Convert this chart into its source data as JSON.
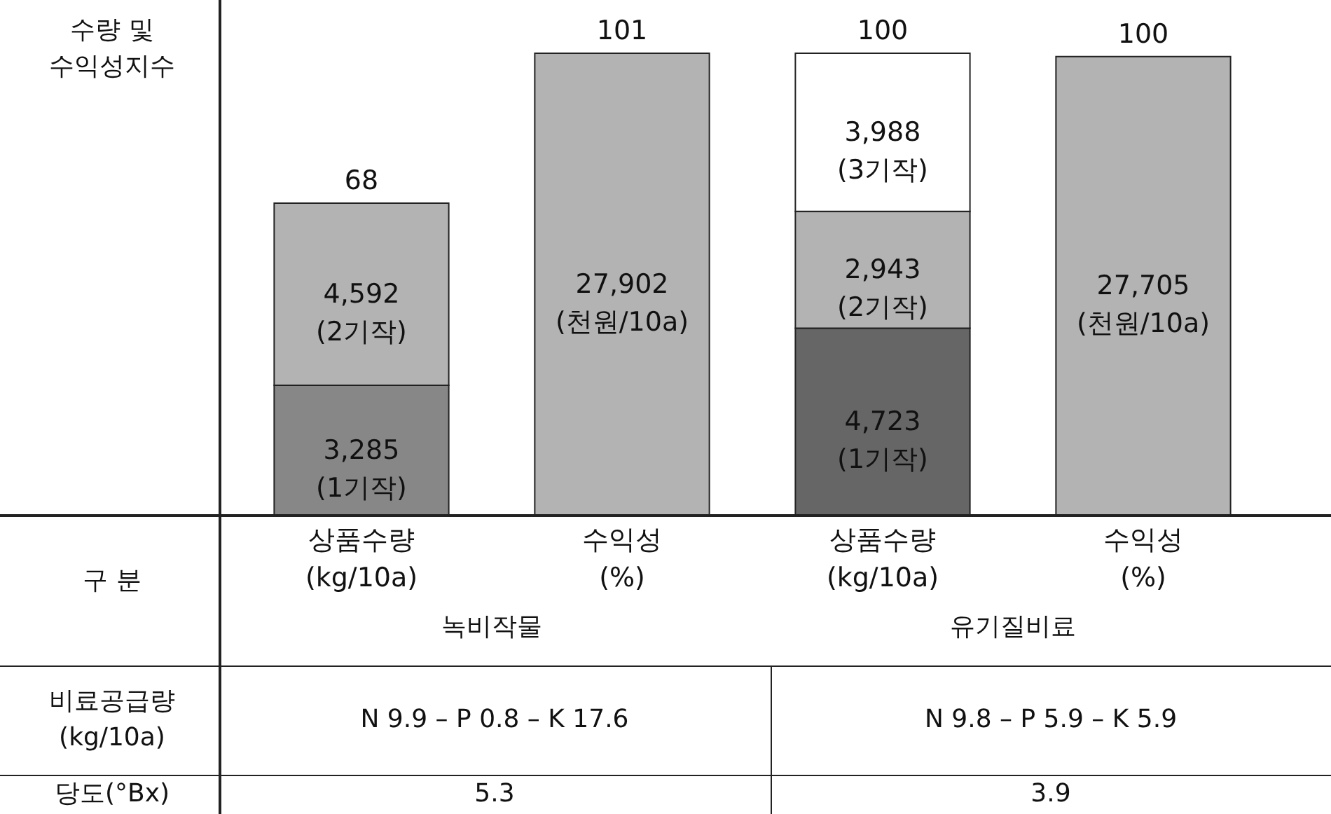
{
  "chart_data": {
    "type": "bar",
    "stacked": true,
    "tick_labels": "x",
    "ylabel": "수량 및\n수익성지수",
    "xlabel": "구 분",
    "ylim": [
      0,
      11654
    ],
    "y2lim": [
      0,
      27902
    ],
    "categories": [
      "상품수량\n(kg/10a)",
      "수익성\n(%)",
      "상품수량\n(kg/10a)",
      "수익성\n(%)"
    ],
    "series": [
      {
        "values": [
          3285,
          null,
          4723,
          null
        ],
        "value_labels": [
          "3,285\n(1기작)",
          null,
          "4,723\n(1기작)",
          null
        ],
        "colors": [
          "#878787",
          null,
          "#666666",
          null
        ]
      },
      {
        "color": "#b3b3b3",
        "values": [
          4592,
          null,
          2943,
          null
        ],
        "value_labels": [
          "4,592\n(2기작)",
          null,
          "2,943\n(2기작)",
          null
        ]
      },
      {
        "color": "#ffffff",
        "values": [
          null,
          null,
          3988,
          null
        ],
        "value_labels": [
          null,
          null,
          "3,988\n(3기작)",
          null
        ]
      },
      {
        "color": "#b3b3b3",
        "axis": "y2",
        "values": [
          null,
          27902,
          null,
          27705
        ],
        "value_labels": [
          null,
          "27,902\n(천원/10a)",
          null,
          "27,705\n(천원/10a)"
        ]
      }
    ],
    "annotations": [
      "68",
      "101",
      "100",
      "100",
      "녹비작물",
      "유기질비료",
      "비료공급량\n(kg/10a)",
      "N 9.9 – P 0.8 – K 17.6",
      "N 9.8 – P 5.9 – K 5.9",
      "당도(°Bx)",
      "5.3",
      "3.9"
    ]
  }
}
